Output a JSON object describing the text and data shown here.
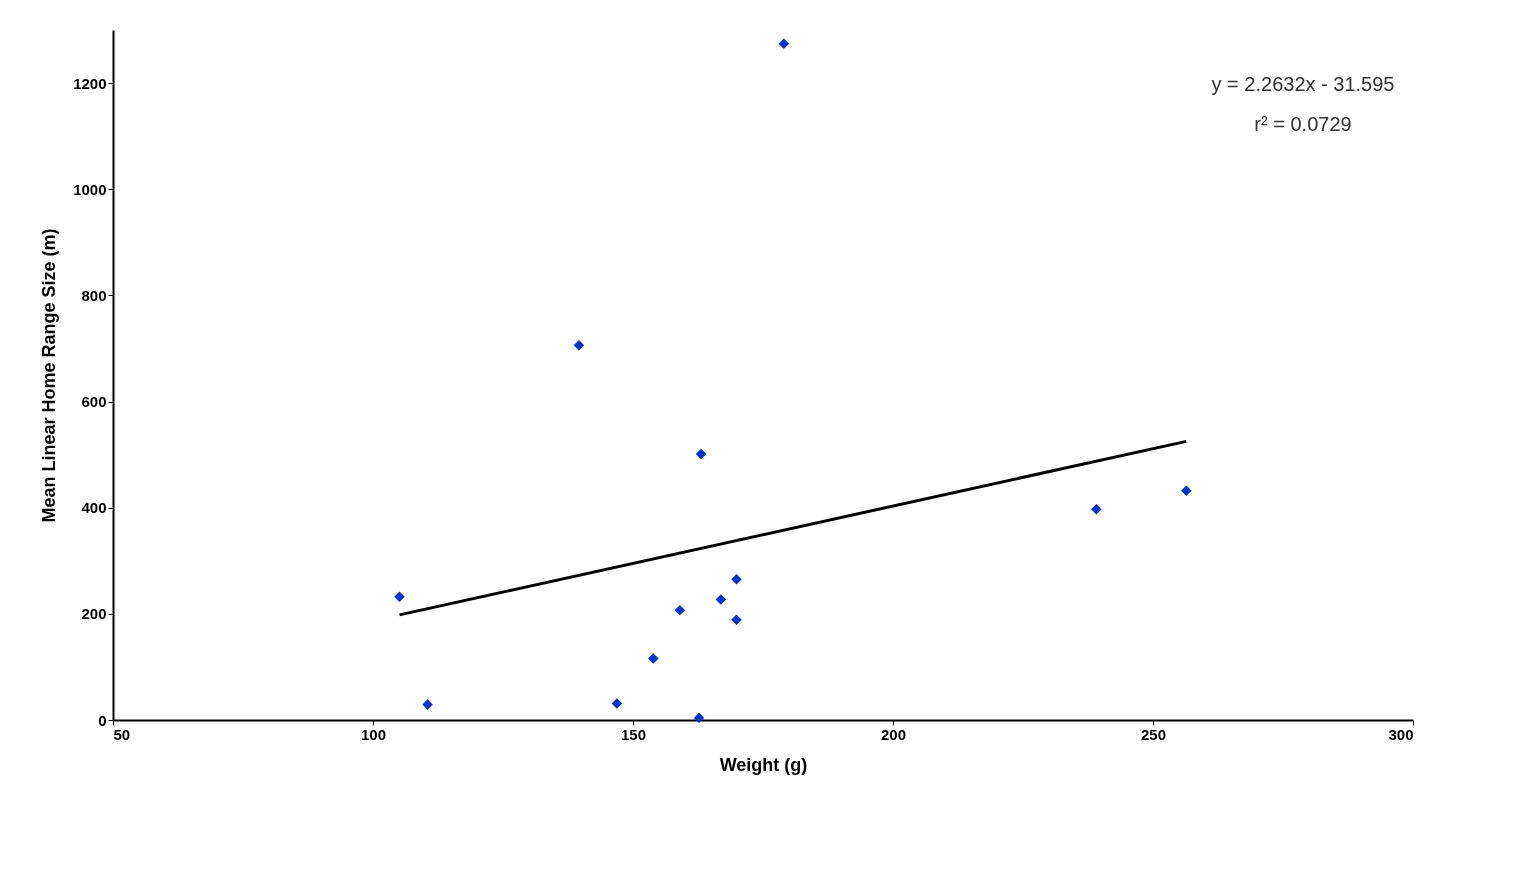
{
  "chart_data": {
    "type": "scatter",
    "xlabel": "Weight (g)",
    "ylabel": "Mean Linear Home Range Size (m)",
    "xlim": [
      50,
      300
    ],
    "xticks": [
      50,
      100,
      150,
      200,
      250,
      300
    ],
    "ylim": [
      0,
      1300
    ],
    "yticks": [
      0,
      200,
      400,
      600,
      800,
      1000,
      1200
    ],
    "grid": false,
    "marker": "diamond",
    "series": [
      {
        "color": "#0033cc",
        "x": [
          105.1,
          110.5,
          139.6,
          146.9,
          153.9,
          159.0,
          162.7,
          163.1,
          166.9,
          169.9,
          169.9,
          179.0,
          239.1,
          256.4
        ],
        "values": [
          232,
          29,
          706,
          31,
          116,
          207,
          4,
          501,
          227,
          265,
          189,
          1274,
          397,
          432
        ]
      },
      {
        "type": "line",
        "color": "#000000",
        "line_style": "solid",
        "x": [
          105.1,
          256.4
        ],
        "values": [
          198,
          525
        ],
        "marker": "none"
      }
    ],
    "annotations": [
      "y = 2.2632x - 31.595",
      "r² = 0.0729"
    ]
  }
}
